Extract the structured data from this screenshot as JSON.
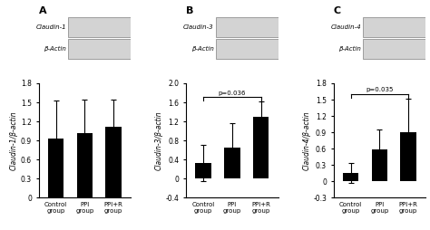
{
  "chart_data": [
    {
      "type": "bar",
      "title": "A",
      "categories": [
        "Control\ngroup",
        "PPI\ngroup",
        "PPI+R\ngroup"
      ],
      "values": [
        0.93,
        1.02,
        1.12
      ],
      "error_bars": [
        0.6,
        0.52,
        0.42
      ],
      "color": "#000000",
      "y_label": "Claudin-1/β-actin",
      "ylim": [
        0,
        1.8
      ],
      "yticks": [
        0,
        0.3,
        0.6,
        0.9,
        1.2,
        1.5,
        1.8
      ],
      "annotations": [
        {
          "type": "blot_row",
          "text": "Claudin-1"
        },
        {
          "type": "blot_row",
          "text": "β-Actin"
        }
      ]
    },
    {
      "type": "bar",
      "title": "B",
      "categories": [
        "Control\ngroup",
        "PPI\ngroup",
        "PPI+R\ngroup"
      ],
      "values": [
        0.33,
        0.65,
        1.3
      ],
      "error_bars": [
        0.38,
        0.52,
        0.32
      ],
      "color": "#000000",
      "y_label": "Claudin-3/β-actin",
      "ylim": [
        -0.4,
        2.0
      ],
      "yticks": [
        -0.4,
        0,
        0.4,
        0.8,
        1.2,
        1.6,
        2.0
      ],
      "annotations": [
        {
          "type": "blot_row",
          "text": "Claudin-3"
        },
        {
          "type": "blot_row",
          "text": "β-Actin"
        },
        {
          "type": "bracket",
          "text": "p=0.036"
        }
      ]
    },
    {
      "type": "bar",
      "title": "C",
      "categories": [
        "Control\ngroup",
        "PPI\ngroup",
        "PPI+R\ngroup"
      ],
      "values": [
        0.16,
        0.58,
        0.9
      ],
      "error_bars": [
        0.18,
        0.38,
        0.62
      ],
      "color": "#000000",
      "y_label": "Claudin-4/β-actin",
      "ylim": [
        -0.3,
        1.8
      ],
      "yticks": [
        -0.3,
        0,
        0.3,
        0.6,
        0.9,
        1.2,
        1.5,
        1.8
      ],
      "annotations": [
        {
          "type": "blot_row",
          "text": "Claudin-4"
        },
        {
          "type": "blot_row",
          "text": "β-Actin"
        },
        {
          "type": "bracket",
          "text": "p=0.035"
        }
      ]
    }
  ]
}
